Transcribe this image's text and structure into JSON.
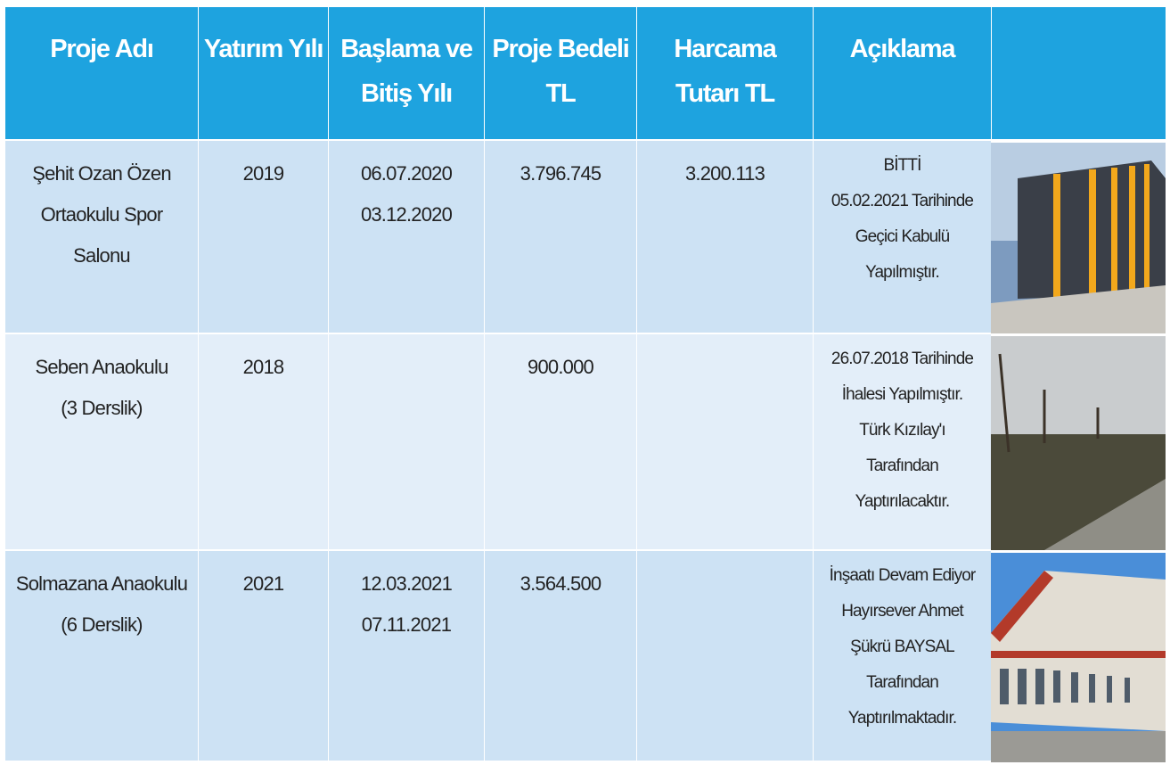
{
  "table": {
    "header": [
      [
        "Proje Adı"
      ],
      [
        "Yatırım Yılı"
      ],
      [
        "Başlama ve",
        "Bitiş Yılı"
      ],
      [
        "Proje Bedeli",
        "TL"
      ],
      [
        "Harcama",
        "Tutarı TL"
      ],
      [
        "Açıklama"
      ]
    ],
    "rows": [
      [
        [
          "Şehit Ozan Özen",
          "Ortaokulu Spor",
          "Salonu"
        ],
        [
          "2019"
        ],
        [
          "06.07.2020",
          "03.12.2020"
        ],
        [
          "3.796.745"
        ],
        [
          "3.200.113"
        ],
        [
          "BİTTİ",
          "05.02.2021 Tarihinde",
          "Geçici Kabulü",
          "Yapılmıştır."
        ]
      ],
      [
        [
          "Seben Anaokulu",
          "(3 Derslik)"
        ],
        [
          "2018"
        ],
        [],
        [
          "900.000"
        ],
        [],
        [
          "26.07.2018 Tarihinde",
          "İhalesi Yapılmıştır.",
          "Türk Kızılay'ı",
          "Tarafından",
          "Yaptırılacaktır."
        ]
      ],
      [
        [
          "Solmazana Anaokulu",
          "(6 Derslik)"
        ],
        [
          "2021"
        ],
        [
          "12.03.2021",
          "07.11.2021"
        ],
        [
          "3.564.500"
        ],
        [],
        [
          "İnşaatı Devam Ediyor",
          "Hayırsever Ahmet",
          "Şükrü BAYSAL",
          "Tarafından",
          "Yaptırılmaktadır."
        ]
      ]
    ]
  }
}
